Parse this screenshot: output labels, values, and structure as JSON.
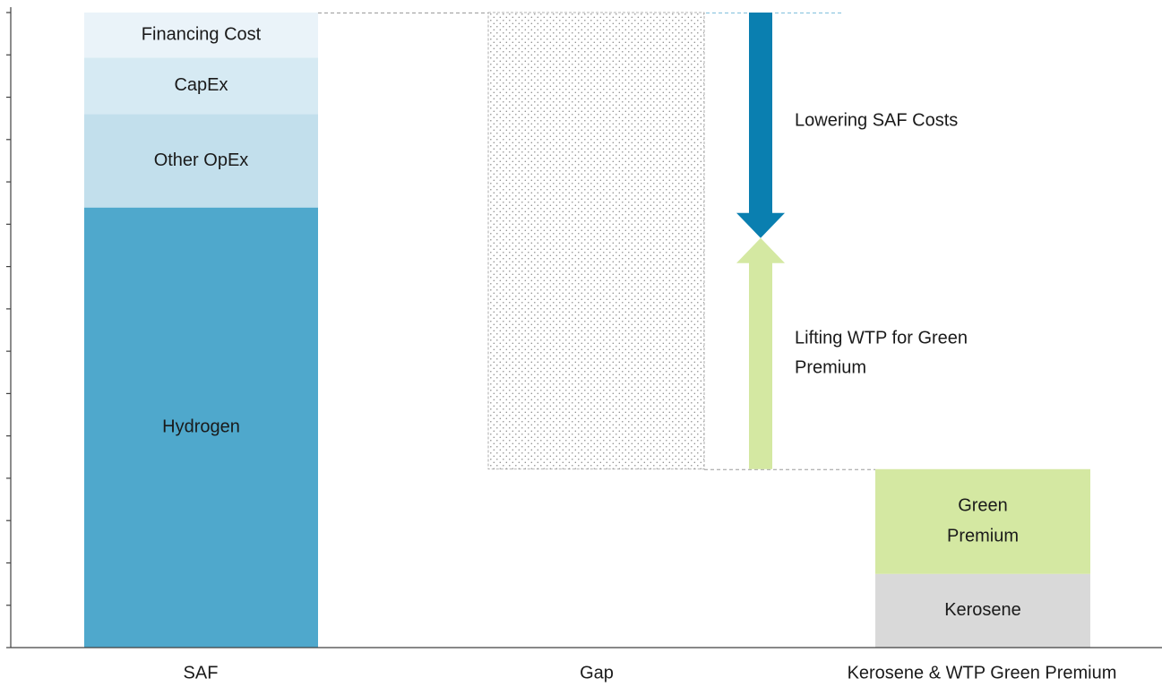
{
  "chart_data": {
    "type": "bar",
    "subtype": "stacked-waterfall",
    "categories": [
      "SAF",
      "Gap",
      "Kerosene & WTP Green Premium"
    ],
    "ylim": [
      0,
      100
    ],
    "y_tick_labels_shown": false,
    "grid": false,
    "legend": "none",
    "bars": {
      "SAF": [
        {
          "name": "Hydrogen",
          "label": "Hydrogen",
          "bottom": 0,
          "top": 69.3,
          "color": "#4fa8cc"
        },
        {
          "name": "Other OpEx",
          "label": "Other OpEx",
          "bottom": 69.3,
          "top": 84.0,
          "color": "#c2dfec"
        },
        {
          "name": "CapEx",
          "label": "CapEx",
          "bottom": 84.0,
          "top": 92.9,
          "color": "#d6eaf3"
        },
        {
          "name": "Financing Cost",
          "label": "Financing Cost",
          "bottom": 92.9,
          "top": 100.0,
          "color": "#eaf3f9"
        }
      ],
      "Gap": [
        {
          "name": "Gap",
          "bottom": 28.1,
          "top": 100.0,
          "pattern": "dotted"
        }
      ],
      "Kerosene & WTP Green Premium": [
        {
          "name": "Kerosene",
          "label": "Kerosene",
          "bottom": 0,
          "top": 11.6,
          "color": "#d9d9d9"
        },
        {
          "name": "Green Premium",
          "label": "Green\nPremium",
          "bottom": 11.6,
          "top": 28.1,
          "color": "#d4e8a2"
        }
      ]
    },
    "arrows": [
      {
        "name": "Lowering SAF Costs",
        "label": "Lowering SAF Costs",
        "from": 100.0,
        "to": 64.5,
        "direction": "down",
        "color": "#0a7fb0"
      },
      {
        "name": "Lifting WTP for Green Premium",
        "label": "Lifting WTP for Green\nPremium",
        "from": 28.1,
        "to": 64.5,
        "direction": "up",
        "color": "#d4e8a2"
      }
    ]
  },
  "colors": {
    "axis": "#404040",
    "text": "#1a1a1a",
    "dashed_connector": "#9a9a9a",
    "dashed_blue": "#7fc0dc",
    "dot": "#8a8a8a"
  }
}
